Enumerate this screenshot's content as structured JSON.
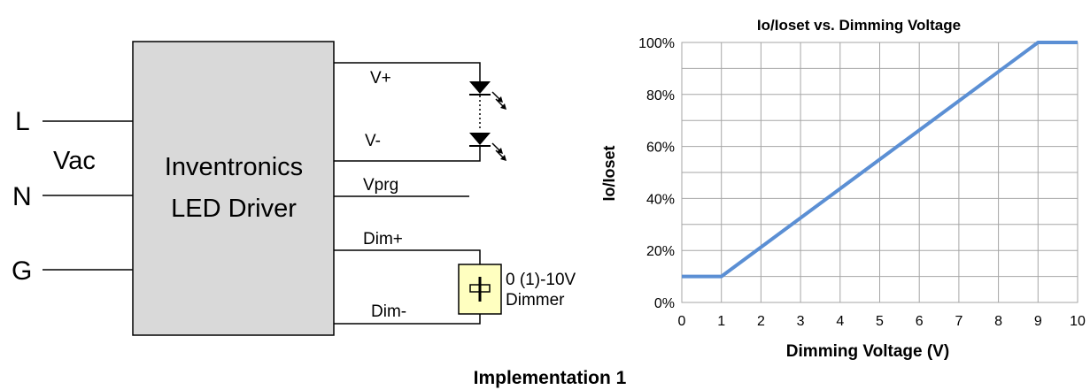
{
  "diagram": {
    "inputs": [
      "L",
      "N",
      "G"
    ],
    "vac_label": "Vac",
    "driver_line1": "Inventronics",
    "driver_line2": "LED Driver",
    "outputs": [
      "V+",
      "V-",
      "Vprg",
      "Dim+",
      "Dim-"
    ],
    "dimmer_line1": "0 (1)-10V",
    "dimmer_line2": "Dimmer",
    "colors": {
      "driver_box": "#d9d9d9",
      "dimmer_box": "#ffffc0",
      "wire": "#000000"
    }
  },
  "chart_data": {
    "type": "line",
    "title": "Io/Ioset vs. Dimming Voltage",
    "xlabel": "Dimming Voltage (V)",
    "ylabel": "Io/Ioset",
    "x_ticks": [
      "0",
      "1",
      "2",
      "3",
      "4",
      "5",
      "6",
      "7",
      "8",
      "9",
      "10"
    ],
    "y_ticks": [
      "0%",
      "20%",
      "40%",
      "60%",
      "80%",
      "100%"
    ],
    "xlim": [
      0,
      10
    ],
    "ylim": [
      0,
      100
    ],
    "grid": true,
    "series": [
      {
        "x": [
          0,
          1,
          9,
          10
        ],
        "y": [
          10,
          10,
          100,
          100
        ],
        "color": "#5b8fd4"
      }
    ]
  },
  "caption": "Implementation 1"
}
